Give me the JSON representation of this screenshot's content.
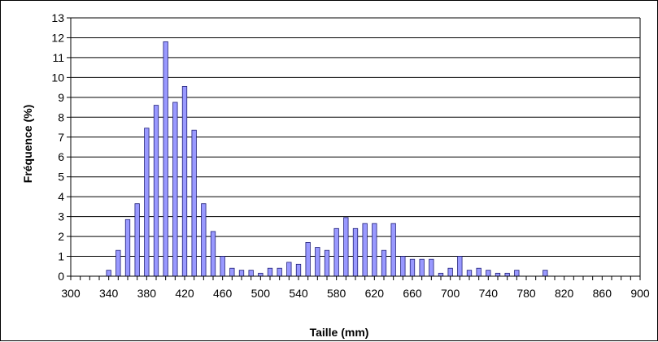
{
  "chart_data": {
    "type": "bar",
    "xlabel": "Taille (mm)",
    "ylabel": "Fréquence (%)",
    "xlim": [
      300,
      900
    ],
    "ylim": [
      0,
      13
    ],
    "xticks": [
      300,
      340,
      380,
      420,
      460,
      500,
      540,
      580,
      620,
      660,
      700,
      740,
      780,
      820,
      860,
      900
    ],
    "yticks": [
      0,
      1,
      2,
      3,
      4,
      5,
      6,
      7,
      8,
      9,
      10,
      11,
      12,
      13
    ],
    "grid": "horizontal",
    "legend": "none",
    "colors": {
      "bar_fill": "#9999ff",
      "bar_stroke": "#1f1f7a",
      "grid": "#000000",
      "background": "#ffffff"
    },
    "x": [
      340,
      350,
      360,
      370,
      380,
      390,
      400,
      410,
      420,
      430,
      440,
      450,
      460,
      470,
      480,
      490,
      500,
      510,
      520,
      530,
      540,
      550,
      560,
      570,
      580,
      590,
      600,
      610,
      620,
      630,
      640,
      650,
      660,
      670,
      680,
      690,
      700,
      710,
      720,
      730,
      740,
      750,
      760,
      770,
      800
    ],
    "values": [
      0.3,
      1.3,
      2.85,
      3.65,
      7.45,
      8.6,
      11.8,
      8.75,
      9.55,
      7.35,
      3.65,
      2.25,
      1.0,
      0.4,
      0.3,
      0.3,
      0.15,
      0.4,
      0.4,
      0.7,
      0.6,
      1.7,
      1.45,
      1.3,
      2.4,
      2.95,
      2.4,
      2.65,
      2.65,
      1.3,
      2.65,
      1.0,
      0.85,
      0.85,
      0.85,
      0.15,
      0.4,
      1.0,
      0.3,
      0.4,
      0.3,
      0.15,
      0.15,
      0.3,
      0.3
    ]
  }
}
